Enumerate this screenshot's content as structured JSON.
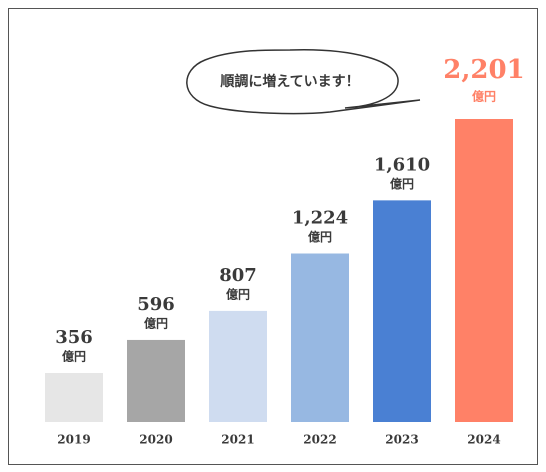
{
  "chart_data": {
    "type": "bar",
    "annotation": "順調に増えています！",
    "unit": "億円",
    "categories": [
      "2019",
      "2020",
      "2021",
      "2022",
      "2023",
      "2024"
    ],
    "values": [
      356,
      596,
      807,
      1224,
      1610,
      2201
    ],
    "value_labels": [
      "356",
      "596",
      "807",
      "1,224",
      "1,610",
      "2,201"
    ],
    "colors": [
      "#e6e6e6",
      "#a6a6a6",
      "#cfdcf0",
      "#97b8e2",
      "#4a80d3",
      "#ff8167"
    ],
    "highlight_category": "2024"
  }
}
